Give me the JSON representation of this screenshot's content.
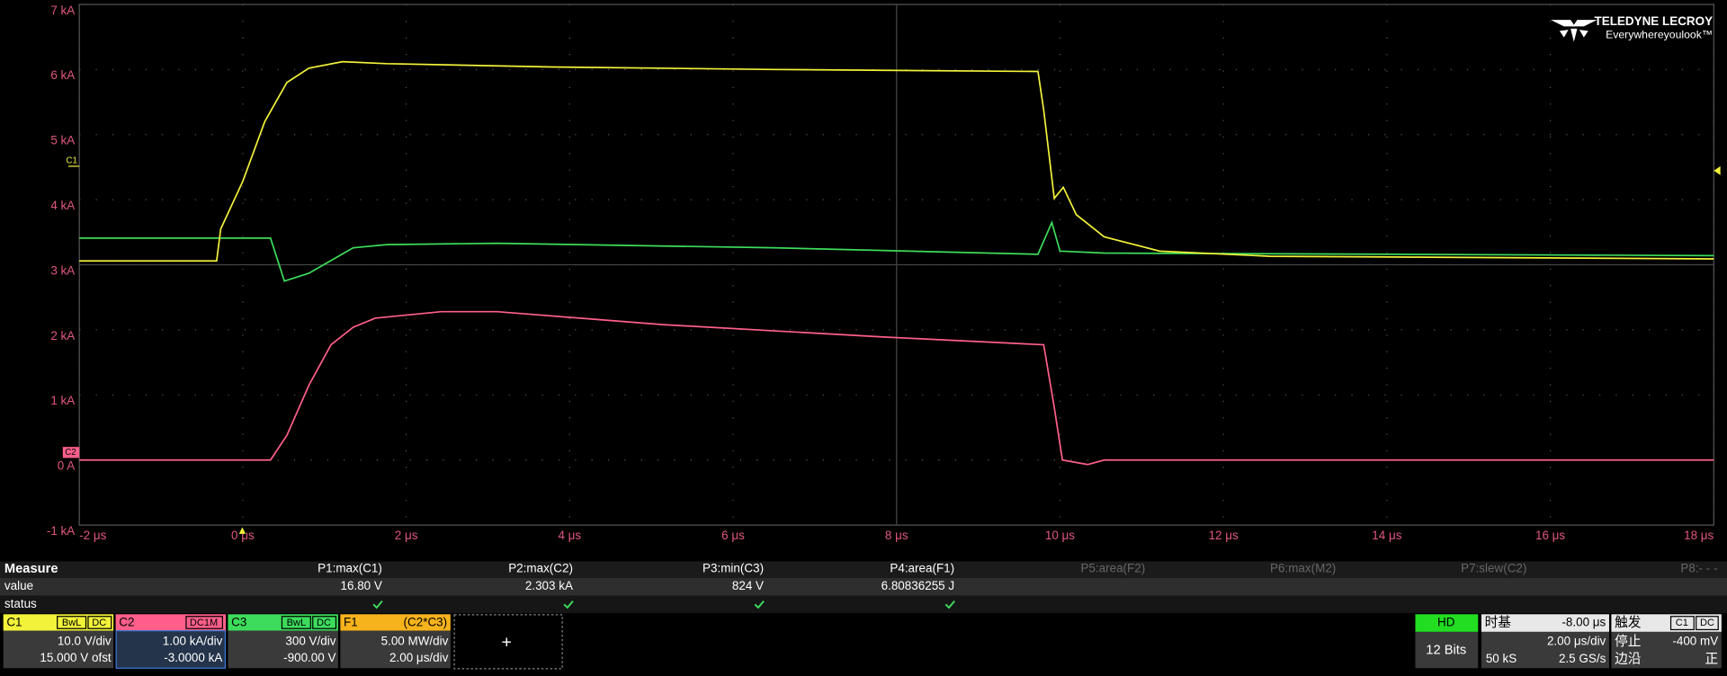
{
  "chart_data": {
    "type": "line",
    "xlim": [
      -2,
      18
    ],
    "ylim": [
      -1,
      7
    ],
    "xticks": [
      {
        "value": -2,
        "label": "-2 μs"
      },
      {
        "value": 0,
        "label": "0 μs"
      },
      {
        "value": 2,
        "label": "2 μs"
      },
      {
        "value": 4,
        "label": "4 μs"
      },
      {
        "value": 6,
        "label": "6 μs"
      },
      {
        "value": 8,
        "label": "8 μs"
      },
      {
        "value": 10,
        "label": "10 μs"
      },
      {
        "value": 12,
        "label": "12 μs"
      },
      {
        "value": 14,
        "label": "14 μs"
      },
      {
        "value": 16,
        "label": "16 μs"
      },
      {
        "value": 18,
        "label": "18 μs"
      }
    ],
    "yticks": [
      {
        "value": -1,
        "label": "-1 kA"
      },
      {
        "value": 0,
        "label": "0 A"
      },
      {
        "value": 1,
        "label": "1 kA"
      },
      {
        "value": 2,
        "label": "2 kA"
      },
      {
        "value": 3,
        "label": "3 kA"
      },
      {
        "value": 4,
        "label": "4 kA"
      },
      {
        "value": 5,
        "label": "5 kA"
      },
      {
        "value": 6,
        "label": "6 kA"
      },
      {
        "value": 7,
        "label": "7 kA"
      }
    ],
    "grid": true,
    "series": [
      {
        "name": "C1",
        "color": "#f2f23a",
        "x": [
          -2,
          -0.32,
          -0.27,
          0,
          0.27,
          0.54,
          0.81,
          1.22,
          1.76,
          3.78,
          6.49,
          9.73,
          9.8,
          9.93,
          10.04,
          10.2,
          10.54,
          11.22,
          12.57,
          18
        ],
        "values": [
          3.06,
          3.06,
          3.55,
          4.28,
          5.2,
          5.8,
          6.02,
          6.12,
          6.09,
          6.04,
          6.0,
          5.97,
          5.38,
          4.02,
          4.19,
          3.77,
          3.43,
          3.21,
          3.13,
          3.09
        ]
      },
      {
        "name": "C2",
        "color": "#ff5f8a",
        "x": [
          -2,
          0.34,
          0.54,
          0.81,
          1.08,
          1.35,
          1.62,
          2.43,
          3.11,
          5.14,
          7.84,
          9.8,
          9.93,
          10.03,
          10.34,
          10.54,
          18
        ],
        "values": [
          0,
          0,
          0.38,
          1.15,
          1.77,
          2.04,
          2.18,
          2.28,
          2.28,
          2.08,
          1.89,
          1.77,
          0.81,
          0,
          -0.07,
          0,
          0
        ]
      },
      {
        "name": "C3",
        "color": "#3ddc5c",
        "x": [
          -2,
          0.34,
          0.51,
          0.81,
          1.35,
          1.76,
          3.11,
          6.49,
          9.73,
          9.9,
          10.0,
          10.54,
          18
        ],
        "values": [
          3.41,
          3.41,
          2.75,
          2.87,
          3.26,
          3.31,
          3.33,
          3.26,
          3.16,
          3.65,
          3.21,
          3.18,
          3.14
        ]
      }
    ]
  },
  "logo": {
    "brand": "TELEDYNE LECROY",
    "tagline": "Everywhereyoulook™"
  },
  "measure": {
    "title": "Measure",
    "parameters": [
      "P1:max(C1)",
      "P2:max(C2)",
      "P3:min(C3)",
      "P4:area(F1)",
      "P5:area(F2)",
      "P6:max(M2)",
      "P7:slew(C2)",
      "P8:- - -"
    ],
    "rows": [
      "value",
      "status"
    ],
    "values": [
      "16.80 V",
      "2.303 kA",
      "824 V",
      "6.80836255 J"
    ]
  },
  "channels": [
    {
      "tags": [
        "BwL",
        "DC"
      ],
      "scale": "10.0 V/div",
      "offset": "15.000 V ofst"
    },
    {
      "tags": [
        "DC1M"
      ],
      "scale": "1.00 kA/div",
      "offset": "-3.0000 kA"
    },
    {
      "tags": [
        "BwL",
        "DC"
      ],
      "scale": "300 V/div",
      "offset": "-900.00 V"
    }
  ],
  "math": {
    "name": "F1",
    "expression": "(C2*C3)",
    "scale": "5.00 MW/div",
    "timebase": "2.00 μs/div"
  },
  "add_button": "+",
  "acquisition": {
    "mode": "HD",
    "bits": "12 Bits"
  },
  "timebase": {
    "label": "时基",
    "delay": "-8.00 μs",
    "scale": "2.00 μs/div",
    "samples": "50 kS",
    "rate": "2.5 GS/s"
  },
  "trigger": {
    "label": "触发",
    "source": "C1",
    "coupling": "DC",
    "state_label": "停止",
    "level": "-400 mV",
    "type_label": "边沿",
    "slope": "正"
  }
}
